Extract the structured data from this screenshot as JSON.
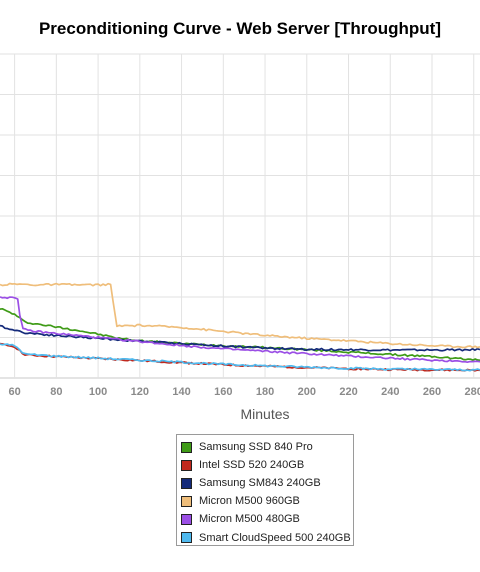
{
  "chart_data": {
    "type": "line",
    "title": "Preconditioning Curve - Web Server [Throughput]",
    "xlabel": "Minutes",
    "ylabel": "",
    "xlim": [
      53,
      283
    ],
    "ylim": [
      0,
      8
    ],
    "x_ticks": [
      60,
      80,
      100,
      120,
      140,
      160,
      180,
      200,
      220,
      240,
      260,
      280
    ],
    "grid": true,
    "legend_position": "bottom",
    "series": [
      {
        "name": "Samsung SSD 840 Pro",
        "color": "#3f9b17",
        "points": [
          [
            53,
            1.72
          ],
          [
            60,
            1.57
          ],
          [
            65,
            1.38
          ],
          [
            75,
            1.3
          ],
          [
            90,
            1.18
          ],
          [
            100,
            1.08
          ],
          [
            110,
            0.98
          ],
          [
            120,
            0.92
          ],
          [
            140,
            0.85
          ],
          [
            160,
            0.8
          ],
          [
            180,
            0.75
          ],
          [
            200,
            0.7
          ],
          [
            220,
            0.64
          ],
          [
            240,
            0.58
          ],
          [
            260,
            0.53
          ],
          [
            270,
            0.49
          ],
          [
            275,
            0.47
          ],
          [
            283,
            0.44
          ]
        ]
      },
      {
        "name": "Intel SSD 520 240GB",
        "color": "#c0281d",
        "points": [
          [
            53,
            0.83
          ],
          [
            60,
            0.78
          ],
          [
            65,
            0.57
          ],
          [
            80,
            0.53
          ],
          [
            100,
            0.48
          ],
          [
            120,
            0.43
          ],
          [
            140,
            0.38
          ],
          [
            160,
            0.33
          ],
          [
            180,
            0.29
          ],
          [
            200,
            0.26
          ],
          [
            220,
            0.23
          ],
          [
            240,
            0.21
          ],
          [
            260,
            0.2
          ],
          [
            283,
            0.19
          ]
        ]
      },
      {
        "name": "Samsung SM843 240GB",
        "color": "#142a7a",
        "points": [
          [
            53,
            1.28
          ],
          [
            60,
            1.18
          ],
          [
            65,
            1.12
          ],
          [
            80,
            1.05
          ],
          [
            100,
            0.98
          ],
          [
            120,
            0.91
          ],
          [
            140,
            0.85
          ],
          [
            160,
            0.79
          ],
          [
            180,
            0.74
          ],
          [
            200,
            0.71
          ],
          [
            220,
            0.7
          ],
          [
            240,
            0.69
          ],
          [
            260,
            0.69
          ],
          [
            283,
            0.7
          ]
        ]
      },
      {
        "name": "Micron M500 960GB",
        "color": "#efbe7b",
        "points": [
          [
            53,
            2.3
          ],
          [
            60,
            2.32
          ],
          [
            70,
            2.3
          ],
          [
            80,
            2.31
          ],
          [
            90,
            2.3
          ],
          [
            100,
            2.3
          ],
          [
            106,
            2.31
          ],
          [
            107,
            1.95
          ],
          [
            109,
            1.28
          ],
          [
            120,
            1.3
          ],
          [
            140,
            1.25
          ],
          [
            160,
            1.15
          ],
          [
            180,
            1.05
          ],
          [
            200,
            0.98
          ],
          [
            220,
            0.92
          ],
          [
            240,
            0.85
          ],
          [
            260,
            0.8
          ],
          [
            270,
            0.78
          ],
          [
            283,
            0.77
          ]
        ]
      },
      {
        "name": "Micron M500 480GB",
        "color": "#9b4fe5",
        "points": [
          [
            53,
            2.0
          ],
          [
            60,
            1.98
          ],
          [
            61.5,
            1.95
          ],
          [
            62.5,
            1.55
          ],
          [
            64,
            1.2
          ],
          [
            70,
            1.15
          ],
          [
            80,
            1.1
          ],
          [
            100,
            1.0
          ],
          [
            120,
            0.9
          ],
          [
            140,
            0.8
          ],
          [
            160,
            0.72
          ],
          [
            180,
            0.66
          ],
          [
            200,
            0.6
          ],
          [
            220,
            0.54
          ],
          [
            240,
            0.49
          ],
          [
            260,
            0.44
          ],
          [
            283,
            0.4
          ]
        ]
      },
      {
        "name": "Smart CloudSpeed 500 240GB",
        "color": "#4fb9ee",
        "points": [
          [
            53,
            0.84
          ],
          [
            60,
            0.8
          ],
          [
            65,
            0.59
          ],
          [
            80,
            0.54
          ],
          [
            100,
            0.49
          ],
          [
            120,
            0.44
          ],
          [
            140,
            0.39
          ],
          [
            160,
            0.34
          ],
          [
            180,
            0.3
          ],
          [
            200,
            0.27
          ],
          [
            220,
            0.24
          ],
          [
            240,
            0.22
          ],
          [
            260,
            0.21
          ],
          [
            283,
            0.2
          ]
        ]
      }
    ]
  }
}
